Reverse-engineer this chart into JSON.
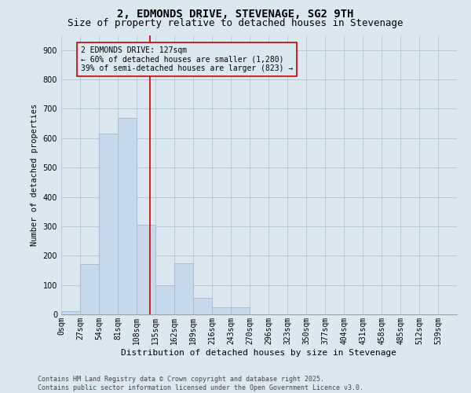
{
  "title": "2, EDMONDS DRIVE, STEVENAGE, SG2 9TH",
  "subtitle": "Size of property relative to detached houses in Stevenage",
  "xlabel": "Distribution of detached houses by size in Stevenage",
  "ylabel": "Number of detached properties",
  "bar_labels": [
    "0sqm",
    "27sqm",
    "54sqm",
    "81sqm",
    "108sqm",
    "135sqm",
    "162sqm",
    "189sqm",
    "216sqm",
    "243sqm",
    "270sqm",
    "296sqm",
    "323sqm",
    "350sqm",
    "377sqm",
    "404sqm",
    "431sqm",
    "458sqm",
    "485sqm",
    "512sqm",
    "539sqm"
  ],
  "bar_values": [
    10,
    170,
    615,
    670,
    305,
    100,
    175,
    55,
    25,
    25,
    0,
    0,
    0,
    0,
    0,
    0,
    0,
    0,
    0,
    0,
    0
  ],
  "bar_color": "#c8d8eb",
  "bar_edge_color": "#a0b8d0",
  "grid_color": "#b8c8d8",
  "background_color": "#dce8f0",
  "vline_color": "#cc0000",
  "vline_x": 4.7,
  "annotation_text": "2 EDMONDS DRIVE: 127sqm\n← 60% of detached houses are smaller (1,280)\n39% of semi-detached houses are larger (823) →",
  "ylim": [
    0,
    950
  ],
  "yticks": [
    0,
    100,
    200,
    300,
    400,
    500,
    600,
    700,
    800,
    900
  ],
  "footer_text": "Contains HM Land Registry data © Crown copyright and database right 2025.\nContains public sector information licensed under the Open Government Licence v3.0.",
  "title_fontsize": 10,
  "subtitle_fontsize": 9,
  "ylabel_fontsize": 7.5,
  "xlabel_fontsize": 8,
  "tick_fontsize": 7,
  "annotation_fontsize": 7,
  "footer_fontsize": 6
}
